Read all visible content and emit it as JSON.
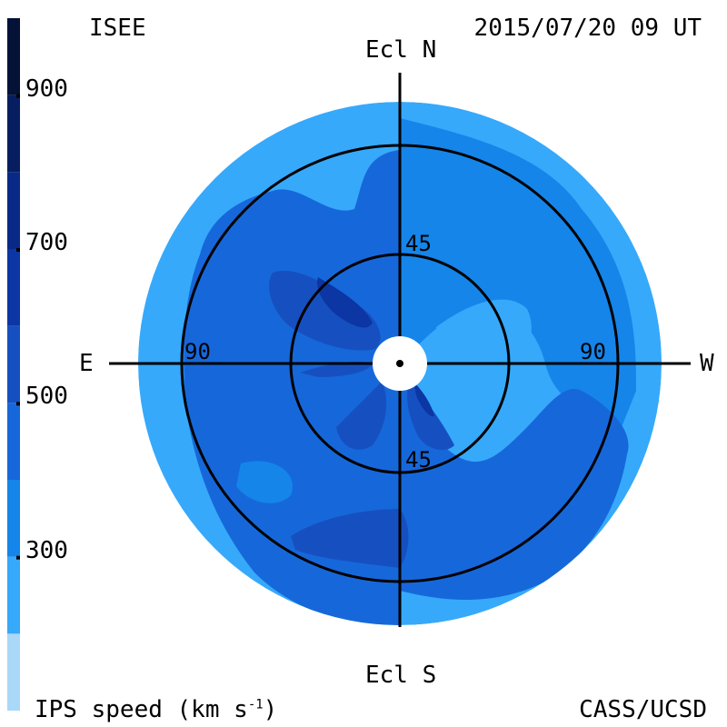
{
  "header": {
    "left_title": "ISEE",
    "timestamp": "2015/07/20 09 UT"
  },
  "footer": {
    "colorbar_caption": "IPS speed (km s",
    "colorbar_caption_exp": "-1",
    "colorbar_caption_end": ")",
    "credit": "CASS/UCSD"
  },
  "chart_data": {
    "type": "heatmap",
    "projection": "polar sky map centered on the Sun",
    "colorbar": {
      "unit": "km s^-1",
      "range": [
        100,
        1000
      ],
      "tick_values": [
        300,
        500,
        700,
        900
      ],
      "tick_labels": [
        "300",
        "500",
        "700",
        "900"
      ],
      "levels": [
        {
          "from": 100,
          "to": 200,
          "color": "#a9d8f8"
        },
        {
          "from": 200,
          "to": 300,
          "color": "#36a9fb"
        },
        {
          "from": 300,
          "to": 400,
          "color": "#1585ea"
        },
        {
          "from": 400,
          "to": 500,
          "color": "#1668da"
        },
        {
          "from": 500,
          "to": 600,
          "color": "#1650c0"
        },
        {
          "from": 600,
          "to": 700,
          "color": "#0b36a4"
        },
        {
          "from": 700,
          "to": 800,
          "color": "#082a86"
        },
        {
          "from": 800,
          "to": 900,
          "color": "#061e60"
        },
        {
          "from": 900,
          "to": 1000,
          "color": "#041238"
        }
      ]
    },
    "axes": {
      "north": "Ecl N",
      "south": "Ecl S",
      "east": "E",
      "west": "W"
    },
    "elongation_rings_deg": [
      45,
      90
    ],
    "ring_labels": {
      "north_45": "45",
      "south_45": "45",
      "east_90": "90",
      "west_90": "90"
    },
    "max_elongation_deg": 110,
    "regions": [
      {
        "name": "outer-background",
        "speed_range": [
          200,
          300
        ]
      },
      {
        "name": "west-north-region",
        "speed_range": [
          300,
          400
        ]
      },
      {
        "name": "east-south-region",
        "speed_range": [
          400,
          500
        ]
      },
      {
        "name": "inner-northeast-lobe",
        "speed_range": [
          500,
          600
        ]
      },
      {
        "name": "southern-band",
        "speed_range": [
          500,
          600
        ]
      },
      {
        "name": "inner-southeast-streak",
        "speed_range": [
          600,
          700
        ]
      }
    ]
  }
}
